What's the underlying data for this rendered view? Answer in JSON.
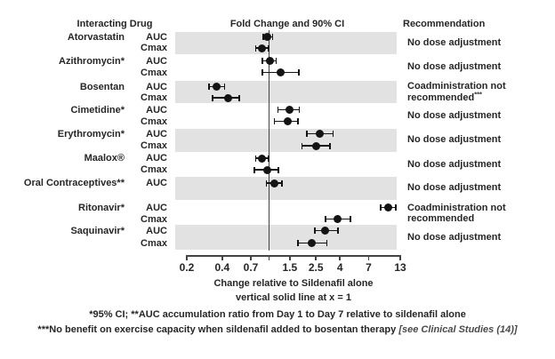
{
  "chart_data": {
    "type": "forest",
    "title": "Fold Change and 90% CI",
    "columns": {
      "left": "Interacting Drug",
      "right": "Recommendation"
    },
    "x_scale": "log",
    "xlim": [
      0.2,
      13
    ],
    "x_ticks": [
      0.2,
      0.4,
      0.7,
      1,
      1.5,
      2.5,
      4,
      7,
      13
    ],
    "x_tick_labels": [
      "0.2",
      "0.4",
      "0.7",
      "",
      "1.5",
      "2.5",
      "4",
      "7",
      "13"
    ],
    "reference_line_x": 1,
    "xlabel_line1": "Change relative to Sildenafil alone",
    "xlabel_line2": "vertical solid line at x = 1",
    "grid": false,
    "groups": [
      {
        "drug": "Atorvastatin",
        "shaded": true,
        "recommendation": [
          "No dose adjustment"
        ],
        "rows": [
          {
            "metric": "AUC",
            "value": 0.97,
            "ci": [
              0.89,
              1.07
            ]
          },
          {
            "metric": "Cmax",
            "value": 0.87,
            "ci": [
              0.77,
              0.99
            ]
          }
        ]
      },
      {
        "drug": "Azithromycin*",
        "shaded": false,
        "recommendation": [
          "No dose adjustment"
        ],
        "rows": [
          {
            "metric": "AUC",
            "value": 1.01,
            "ci": [
              0.88,
              1.15
            ]
          },
          {
            "metric": "Cmax",
            "value": 1.26,
            "ci": [
              0.88,
              1.8
            ]
          }
        ]
      },
      {
        "drug": "Bosentan",
        "shaded": true,
        "recommendation": [
          "Coadministration not",
          "recommended"
        ],
        "rec_sup": "***",
        "rows": [
          {
            "metric": "AUC",
            "value": 0.36,
            "ci": [
              0.31,
              0.42
            ]
          },
          {
            "metric": "Cmax",
            "value": 0.45,
            "ci": [
              0.33,
              0.56
            ]
          }
        ]
      },
      {
        "drug": "Cimetidine*",
        "shaded": false,
        "recommendation": [
          "No dose adjustment"
        ],
        "rows": [
          {
            "metric": "AUC",
            "value": 1.49,
            "ci": [
              1.19,
              1.81
            ]
          },
          {
            "metric": "Cmax",
            "value": 1.44,
            "ci": [
              1.11,
              1.76
            ]
          }
        ]
      },
      {
        "drug": "Erythromycin*",
        "shaded": true,
        "recommendation": [
          "No dose adjustment"
        ],
        "rows": [
          {
            "metric": "AUC",
            "value": 2.7,
            "ci": [
              2.1,
              3.5
            ]
          },
          {
            "metric": "Cmax",
            "value": 2.5,
            "ci": [
              1.9,
              3.3
            ]
          }
        ]
      },
      {
        "drug": "Maalox®",
        "shaded": false,
        "recommendation": [
          "No dose adjustment"
        ],
        "rows": [
          {
            "metric": "AUC",
            "value": 0.87,
            "ci": [
              0.77,
              0.99
            ]
          },
          {
            "metric": "Cmax",
            "value": 0.96,
            "ci": [
              0.75,
              1.2
            ]
          }
        ]
      },
      {
        "drug": "Oral Contraceptives**",
        "shaded": true,
        "recommendation": [
          "No dose adjustment"
        ],
        "rows": [
          {
            "metric": "AUC",
            "value": 1.11,
            "ci": [
              0.95,
              1.29
            ]
          }
        ]
      },
      {
        "drug": "Ritonavir*",
        "shaded": false,
        "recommendation": [
          "Coadministration not",
          "recommended"
        ],
        "rows": [
          {
            "metric": "AUC",
            "value": 10.3,
            "ci": [
              8.9,
              11.9
            ]
          },
          {
            "metric": "Cmax",
            "value": 3.8,
            "ci": [
              3.0,
              4.9
            ]
          }
        ]
      },
      {
        "drug": "Saquinavir*",
        "shaded": true,
        "recommendation": [
          "No dose adjustment"
        ],
        "rows": [
          {
            "metric": "AUC",
            "value": 3.0,
            "ci": [
              2.45,
              3.85
            ]
          },
          {
            "metric": "Cmax",
            "value": 2.3,
            "ci": [
              1.75,
              3.1
            ]
          }
        ]
      }
    ],
    "footnotes": {
      "line1": "*95% CI; **AUC accumulation ratio from Day 1 to Day 7 relative to sildenafil alone",
      "line2_bold": "***No benefit on exercise capacity when sildenafil added to bosentan therapy ",
      "line2_italic": "[see Clinical Studies (14)]"
    },
    "colors": {
      "band": "#e2e2e2",
      "marker": "#141414",
      "text": "#262626"
    }
  }
}
